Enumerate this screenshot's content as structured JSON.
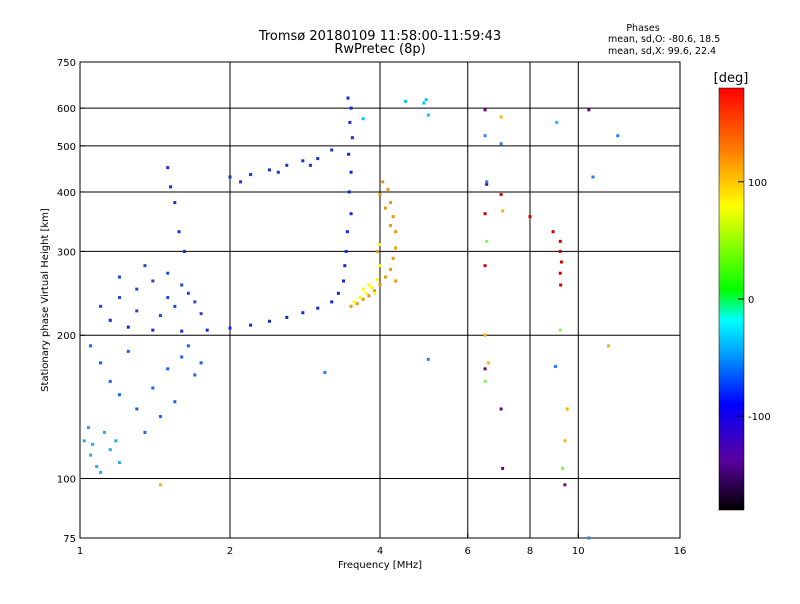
{
  "chart_data": {
    "type": "scatter",
    "title": "Tromsø 20180109 11:58:00-11:59:43",
    "subtitle": "RwPretec (8p)",
    "xlabel": "Frequency [MHz]",
    "ylabel": "Stationary phase Virtual Height [km]",
    "x_scale": "log",
    "y_scale": "log",
    "xlim": [
      1,
      16
    ],
    "ylim": [
      75,
      750
    ],
    "x_ticks": [
      1,
      2,
      4,
      6,
      8,
      10,
      16
    ],
    "x_tick_labels": [
      "1",
      "2",
      "4",
      "6",
      "8",
      "10",
      "16"
    ],
    "x_gridlines": [
      2,
      4,
      6,
      8,
      10
    ],
    "y_ticks": [
      75,
      100,
      200,
      300,
      400,
      500,
      600,
      750
    ],
    "y_tick_labels": [
      "75",
      "100",
      "200",
      "300",
      "400",
      "500",
      "600",
      "750"
    ],
    "y_gridlines": [
      100,
      200,
      300,
      400,
      500,
      600
    ],
    "grid": true,
    "legend": {
      "title": "Phases",
      "lines": [
        "mean, sd,O: -80.6, 18.5",
        "mean, sd,X:  99.6, 22.4"
      ],
      "position": "top-right"
    },
    "colorbar": {
      "label": "[deg]",
      "range": [
        -180,
        180
      ],
      "ticks": [
        100,
        0,
        -100
      ],
      "tick_labels": [
        "100",
        "0",
        "-100"
      ],
      "colormap": [
        "#000000",
        "#5a00a0",
        "#0000ff",
        "#00aaff",
        "#00ffff",
        "#00ff00",
        "#ffff00",
        "#ff8000",
        "#ff0000"
      ]
    },
    "series": [
      {
        "name": "",
        "color": "#0a28e6",
        "points": [
          [
            3.45,
            630
          ],
          [
            3.5,
            600
          ],
          [
            3.48,
            560
          ],
          [
            3.52,
            520
          ],
          [
            3.46,
            480
          ],
          [
            3.5,
            440
          ],
          [
            3.47,
            400
          ],
          [
            3.5,
            360
          ],
          [
            3.44,
            330
          ],
          [
            3.42,
            300
          ],
          [
            3.4,
            280
          ],
          [
            3.38,
            260
          ],
          [
            3.3,
            245
          ],
          [
            3.2,
            235
          ],
          [
            3.0,
            228
          ],
          [
            2.8,
            223
          ],
          [
            2.6,
            218
          ],
          [
            2.4,
            214
          ],
          [
            2.2,
            210
          ],
          [
            2.0,
            207
          ],
          [
            1.8,
            205
          ],
          [
            1.6,
            204
          ],
          [
            1.4,
            205
          ],
          [
            1.25,
            208
          ],
          [
            1.15,
            215
          ]
        ]
      },
      {
        "name": "",
        "color": "#1e46dc",
        "points": [
          [
            1.1,
            230
          ],
          [
            1.2,
            240
          ],
          [
            1.3,
            250
          ],
          [
            1.4,
            260
          ],
          [
            1.5,
            270
          ],
          [
            1.6,
            255
          ],
          [
            1.7,
            235
          ],
          [
            1.3,
            225
          ],
          [
            1.45,
            220
          ],
          [
            1.55,
            230
          ],
          [
            1.65,
            245
          ],
          [
            1.2,
            265
          ],
          [
            1.35,
            280
          ],
          [
            1.5,
            240
          ],
          [
            1.75,
            222
          ]
        ]
      },
      {
        "name": "",
        "color": "#1460ff",
        "points": [
          [
            1.05,
            190
          ],
          [
            1.1,
            175
          ],
          [
            1.15,
            160
          ],
          [
            1.2,
            150
          ],
          [
            1.3,
            140
          ],
          [
            1.4,
            155
          ],
          [
            1.5,
            170
          ],
          [
            1.6,
            180
          ],
          [
            1.7,
            165
          ],
          [
            1.45,
            135
          ],
          [
            1.35,
            125
          ],
          [
            1.55,
            145
          ],
          [
            1.25,
            185
          ],
          [
            1.65,
            190
          ],
          [
            1.75,
            175
          ]
        ]
      },
      {
        "name": "",
        "color": "#2aa8f0",
        "points": [
          [
            1.02,
            120
          ],
          [
            1.05,
            112
          ],
          [
            1.08,
            106
          ],
          [
            1.1,
            103
          ],
          [
            1.06,
            118
          ],
          [
            1.12,
            125
          ],
          [
            1.15,
            115
          ],
          [
            1.2,
            108
          ],
          [
            1.04,
            128
          ],
          [
            1.18,
            120
          ]
        ]
      },
      {
        "name": "",
        "color": "#1432d2",
        "points": [
          [
            2.0,
            430
          ],
          [
            2.2,
            435
          ],
          [
            2.4,
            445
          ],
          [
            2.6,
            455
          ],
          [
            2.8,
            465
          ],
          [
            3.0,
            470
          ],
          [
            3.2,
            490
          ],
          [
            2.1,
            420
          ],
          [
            2.5,
            440
          ],
          [
            2.9,
            455
          ],
          [
            1.5,
            450
          ],
          [
            1.55,
            380
          ],
          [
            1.58,
            330
          ],
          [
            1.62,
            300
          ],
          [
            1.52,
            410
          ]
        ]
      },
      {
        "name": "",
        "color": "#e6960a",
        "points": [
          [
            3.5,
            230
          ],
          [
            3.6,
            233
          ],
          [
            3.7,
            238
          ],
          [
            3.8,
            242
          ],
          [
            3.9,
            248
          ],
          [
            4.0,
            255
          ],
          [
            4.1,
            265
          ],
          [
            4.2,
            275
          ],
          [
            4.25,
            290
          ],
          [
            4.3,
            305
          ],
          [
            4.3,
            330
          ],
          [
            4.25,
            355
          ],
          [
            4.2,
            380
          ],
          [
            4.15,
            405
          ],
          [
            4.05,
            420
          ],
          [
            4.0,
            395
          ],
          [
            4.1,
            370
          ],
          [
            4.2,
            340
          ],
          [
            3.95,
            300
          ],
          [
            4.3,
            260
          ]
        ]
      },
      {
        "name": "",
        "color": "#ffff00",
        "points": [
          [
            3.55,
            235
          ],
          [
            3.65,
            240
          ],
          [
            3.75,
            245
          ],
          [
            3.85,
            252
          ],
          [
            3.95,
            262
          ],
          [
            4.0,
            280
          ],
          [
            3.98,
            310
          ],
          [
            3.9,
            245
          ],
          [
            3.8,
            255
          ],
          [
            3.7,
            250
          ]
        ]
      },
      {
        "name": "",
        "color": "#d20000",
        "points": [
          [
            9.2,
            315
          ],
          [
            9.2,
            300
          ],
          [
            9.25,
            285
          ],
          [
            9.2,
            270
          ],
          [
            9.22,
            255
          ],
          [
            8.0,
            355
          ],
          [
            8.9,
            330
          ],
          [
            6.5,
            360
          ],
          [
            6.5,
            280
          ],
          [
            7.0,
            395
          ]
        ]
      },
      {
        "name": "",
        "color": "#00c8ff",
        "points": [
          [
            4.95,
            625
          ],
          [
            4.9,
            615
          ],
          [
            5.0,
            580
          ],
          [
            3.7,
            570
          ],
          [
            4.5,
            620
          ],
          [
            9.05,
            560
          ]
        ]
      },
      {
        "name": "",
        "color": "#6e0082",
        "points": [
          [
            6.5,
            595
          ],
          [
            6.55,
            415
          ],
          [
            6.5,
            170
          ],
          [
            7.0,
            140
          ],
          [
            7.05,
            105
          ],
          [
            10.5,
            595
          ],
          [
            9.4,
            97
          ]
        ]
      },
      {
        "name": "",
        "color": "#ffb400",
        "points": [
          [
            7.0,
            575
          ],
          [
            6.5,
            200
          ],
          [
            6.6,
            175
          ],
          [
            7.05,
            365
          ],
          [
            9.5,
            140
          ],
          [
            9.4,
            120
          ],
          [
            11.5,
            190
          ],
          [
            1.45,
            97
          ]
        ]
      },
      {
        "name": "",
        "color": "#78ff50",
        "points": [
          [
            6.5,
            160
          ],
          [
            6.55,
            315
          ],
          [
            9.2,
            205
          ],
          [
            9.3,
            105
          ]
        ]
      },
      {
        "name": "",
        "color": "#2080ff",
        "points": [
          [
            6.5,
            525
          ],
          [
            7.0,
            505
          ],
          [
            6.55,
            420
          ],
          [
            5.0,
            178
          ],
          [
            3.1,
            167
          ],
          [
            9.0,
            172
          ],
          [
            12.0,
            525
          ],
          [
            10.5,
            75
          ],
          [
            10.7,
            430
          ]
        ]
      }
    ]
  }
}
